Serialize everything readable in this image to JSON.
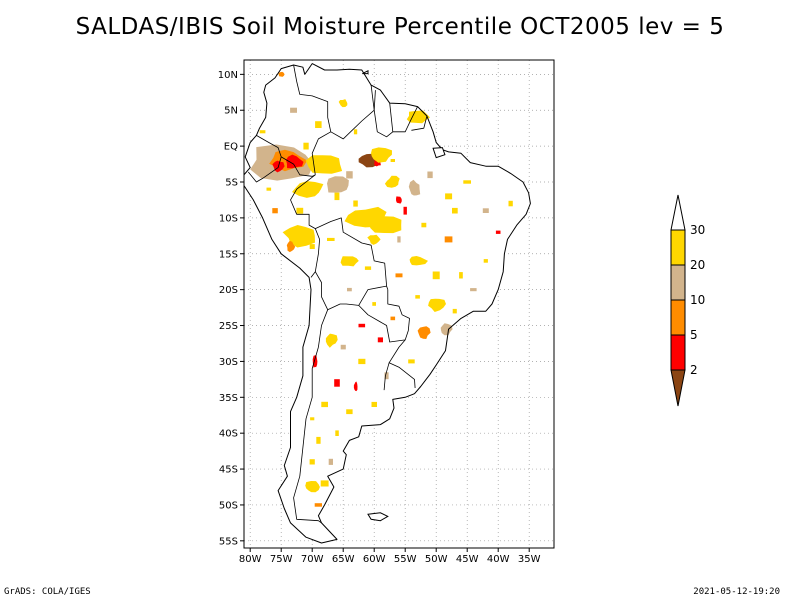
{
  "title": "SALDAS/IBIS Soil Moisture Percentile OCT2005 lev = 5",
  "map": {
    "region": "South America",
    "lon_range": [
      -81,
      -31
    ],
    "lat_range": [
      -56,
      12
    ],
    "lat_ticks": [
      {
        "value": 10,
        "label": "10N"
      },
      {
        "value": 5,
        "label": "5N"
      },
      {
        "value": 0,
        "label": "EQ"
      },
      {
        "value": -5,
        "label": "5S"
      },
      {
        "value": -10,
        "label": "10S"
      },
      {
        "value": -15,
        "label": "15S"
      },
      {
        "value": -20,
        "label": "20S"
      },
      {
        "value": -25,
        "label": "25S"
      },
      {
        "value": -30,
        "label": "30S"
      },
      {
        "value": -35,
        "label": "35S"
      },
      {
        "value": -40,
        "label": "40S"
      },
      {
        "value": -45,
        "label": "45S"
      },
      {
        "value": -50,
        "label": "50S"
      },
      {
        "value": -55,
        "label": "55S"
      }
    ],
    "lon_ticks": [
      {
        "value": -80,
        "label": "80W"
      },
      {
        "value": -75,
        "label": "75W"
      },
      {
        "value": -70,
        "label": "70W"
      },
      {
        "value": -65,
        "label": "65W"
      },
      {
        "value": -60,
        "label": "60W"
      },
      {
        "value": -55,
        "label": "55W"
      },
      {
        "value": -50,
        "label": "50W"
      },
      {
        "value": -45,
        "label": "45W"
      },
      {
        "value": -40,
        "label": "40W"
      },
      {
        "value": -35,
        "label": "35W"
      }
    ]
  },
  "colorbar": {
    "levels": [
      "2",
      "5",
      "10",
      "20",
      "30"
    ],
    "colors": [
      "#8b4513",
      "#ff0000",
      "#ff8c00",
      "#d2b48c",
      "#ffd700",
      "#ffffff"
    ]
  },
  "coast": [
    [
      -77.5,
      8.5
    ],
    [
      -76,
      9.5
    ],
    [
      -75,
      10.8
    ],
    [
      -73,
      11.3
    ],
    [
      -71.5,
      11
    ],
    [
      -71.2,
      10
    ],
    [
      -70,
      11.5
    ],
    [
      -68,
      10.6
    ],
    [
      -66,
      10.6
    ],
    [
      -64,
      10.7
    ],
    [
      -62,
      10.6
    ],
    [
      -60.5,
      8.5
    ],
    [
      -59,
      7.8
    ],
    [
      -57.5,
      6
    ],
    [
      -55,
      5.9
    ],
    [
      -53,
      5.5
    ],
    [
      -51.5,
      4.2
    ],
    [
      -50.5,
      2
    ],
    [
      -50,
      0.5
    ],
    [
      -49,
      -0.5
    ],
    [
      -48,
      -0.8
    ],
    [
      -46,
      -1
    ],
    [
      -44.5,
      -2.3
    ],
    [
      -42,
      -2.8
    ],
    [
      -40,
      -2.8
    ],
    [
      -38,
      -3.8
    ],
    [
      -36,
      -5
    ],
    [
      -35.1,
      -6.5
    ],
    [
      -34.8,
      -8
    ],
    [
      -35.5,
      -9.5
    ],
    [
      -37,
      -11
    ],
    [
      -38.5,
      -13
    ],
    [
      -39,
      -15
    ],
    [
      -39.2,
      -17.5
    ],
    [
      -40,
      -20
    ],
    [
      -41,
      -22
    ],
    [
      -42,
      -23
    ],
    [
      -44,
      -23
    ],
    [
      -46,
      -24
    ],
    [
      -48,
      -25.5
    ],
    [
      -48.5,
      -28.5
    ],
    [
      -50,
      -30.5
    ],
    [
      -51,
      -31.8
    ],
    [
      -52.5,
      -33.5
    ],
    [
      -53.5,
      -34.5
    ],
    [
      -55,
      -35
    ],
    [
      -57,
      -35.3
    ],
    [
      -56.8,
      -36.5
    ],
    [
      -57.5,
      -38
    ],
    [
      -59,
      -38.8
    ],
    [
      -62,
      -39
    ],
    [
      -62.5,
      -40.5
    ],
    [
      -64,
      -41
    ],
    [
      -65,
      -42.5
    ],
    [
      -64.5,
      -43
    ],
    [
      -65,
      -45
    ],
    [
      -67.5,
      -46
    ],
    [
      -66.5,
      -47.5
    ],
    [
      -68,
      -50
    ],
    [
      -69,
      -51.5
    ],
    [
      -68.5,
      -52.5
    ],
    [
      -66,
      -54.8
    ],
    [
      -68.5,
      -55.3
    ],
    [
      -71,
      -54.5
    ],
    [
      -73.5,
      -52.5
    ],
    [
      -74.5,
      -50.5
    ],
    [
      -75.5,
      -48
    ],
    [
      -74,
      -46
    ],
    [
      -74.5,
      -44.5
    ],
    [
      -73.5,
      -42
    ],
    [
      -73.5,
      -39
    ],
    [
      -73.5,
      -37
    ],
    [
      -72.5,
      -35
    ],
    [
      -71.5,
      -32
    ],
    [
      -71.5,
      -28
    ],
    [
      -70.5,
      -25
    ],
    [
      -70.2,
      -20
    ],
    [
      -70.5,
      -18.3
    ],
    [
      -72,
      -17
    ],
    [
      -75,
      -15
    ],
    [
      -76.5,
      -13
    ],
    [
      -78,
      -10
    ],
    [
      -79.5,
      -7.5
    ],
    [
      -81,
      -5.5
    ],
    [
      -81,
      -4
    ],
    [
      -80,
      -3
    ],
    [
      -80.8,
      -1.5
    ],
    [
      -80,
      0.5
    ],
    [
      -79,
      1.5
    ],
    [
      -78.5,
      2.5
    ],
    [
      -77.5,
      4
    ],
    [
      -77.3,
      6
    ],
    [
      -77.8,
      7.5
    ],
    [
      -77.5,
      8.5
    ]
  ],
  "borders": [
    [
      [
        -73,
        11.3
      ],
      [
        -72.5,
        9
      ],
      [
        -72,
        7.2
      ],
      [
        -70,
        7
      ],
      [
        -67.5,
        6.2
      ],
      [
        -67.5,
        4
      ],
      [
        -67,
        2
      ],
      [
        -65,
        1
      ],
      [
        -62,
        3.5
      ],
      [
        -60,
        5
      ],
      [
        -60.5,
        8.5
      ]
    ],
    [
      [
        -59.8,
        7.8
      ],
      [
        -60,
        5
      ],
      [
        -59.5,
        2
      ],
      [
        -58,
        1.3
      ],
      [
        -57,
        2
      ],
      [
        -57.5,
        6
      ]
    ],
    [
      [
        -57,
        2
      ],
      [
        -55,
        2
      ],
      [
        -54,
        3.8
      ],
      [
        -53,
        5.5
      ]
    ],
    [
      [
        -54,
        2.2
      ],
      [
        -52,
        2.5
      ],
      [
        -51.5,
        4.2
      ]
    ],
    [
      [
        -67,
        2
      ],
      [
        -69,
        1
      ],
      [
        -70,
        -1
      ],
      [
        -69.5,
        -4
      ]
    ],
    [
      [
        -79,
        1.5
      ],
      [
        -77,
        0.5
      ],
      [
        -75.5,
        -0.2
      ],
      [
        -75,
        -1.5
      ],
      [
        -75.5,
        -3
      ],
      [
        -78,
        -4.5
      ],
      [
        -79,
        -5
      ],
      [
        -80.3,
        -3.6
      ]
    ],
    [
      [
        -75,
        -1.5
      ],
      [
        -73,
        -2.5
      ],
      [
        -72,
        -4
      ],
      [
        -70,
        -4.2
      ],
      [
        -69.5,
        -4
      ]
    ],
    [
      [
        -69.5,
        -4
      ],
      [
        -72.5,
        -6
      ],
      [
        -73.5,
        -7.5
      ],
      [
        -72.5,
        -9.5
      ],
      [
        -70.5,
        -9.5
      ],
      [
        -70.5,
        -11
      ],
      [
        -69.5,
        -11.5
      ],
      [
        -68.8,
        -13
      ],
      [
        -69,
        -15
      ],
      [
        -69.5,
        -17.5
      ],
      [
        -70.2,
        -18.3
      ]
    ],
    [
      [
        -69.5,
        -11.5
      ],
      [
        -67,
        -10.5
      ],
      [
        -65.3,
        -10
      ],
      [
        -65,
        -12
      ],
      [
        -62,
        -13.5
      ],
      [
        -60.5,
        -13.8
      ],
      [
        -60,
        -16
      ],
      [
        -58.3,
        -16.3
      ],
      [
        -58,
        -19.5
      ],
      [
        -57.8,
        -20
      ]
    ],
    [
      [
        -69.5,
        -17.5
      ],
      [
        -68.5,
        -19
      ],
      [
        -68.5,
        -21
      ],
      [
        -67.5,
        -22.8
      ],
      [
        -65.5,
        -22
      ],
      [
        -64.5,
        -22
      ],
      [
        -62.5,
        -22.2
      ],
      [
        -61,
        -20
      ],
      [
        -58,
        -19.5
      ]
    ],
    [
      [
        -67.5,
        -22.8
      ],
      [
        -68.5,
        -25
      ],
      [
        -69,
        -28
      ],
      [
        -70,
        -31
      ],
      [
        -70,
        -35
      ],
      [
        -71,
        -38
      ],
      [
        -71.5,
        -42
      ],
      [
        -72,
        -46
      ],
      [
        -73,
        -49
      ],
      [
        -72.5,
        -52
      ],
      [
        -69,
        -52.2
      ],
      [
        -68.5,
        -52.5
      ]
    ],
    [
      [
        -62.5,
        -22.2
      ],
      [
        -61,
        -23.5
      ],
      [
        -58,
        -25
      ],
      [
        -57.5,
        -27.3
      ],
      [
        -55,
        -27
      ],
      [
        -54.5,
        -25.7
      ],
      [
        -54.3,
        -24
      ],
      [
        -55.5,
        -23.5
      ],
      [
        -56,
        -22.3
      ],
      [
        -57.8,
        -22
      ],
      [
        -57.8,
        -20
      ]
    ],
    [
      [
        -55,
        -27
      ],
      [
        -56,
        -28
      ],
      [
        -57.6,
        -30.2
      ],
      [
        -56,
        -30.8
      ],
      [
        -53.5,
        -32.5
      ],
      [
        -53.4,
        -33.7
      ]
    ],
    [
      [
        -57.6,
        -30.2
      ],
      [
        -58.2,
        -32
      ],
      [
        -58.4,
        -34
      ]
    ]
  ],
  "small_islands": [
    {
      "name": "Falklands",
      "points": [
        [
          -61,
          -51.3
        ],
        [
          -59,
          -51.1
        ],
        [
          -57.8,
          -51.6
        ],
        [
          -59,
          -52.2
        ],
        [
          -60.5,
          -52
        ],
        [
          -61,
          -51.3
        ]
      ]
    },
    {
      "name": "Marajo",
      "points": [
        [
          -50.5,
          -0.3
        ],
        [
          -49,
          -0.2
        ],
        [
          -48.6,
          -1.2
        ],
        [
          -50,
          -1.6
        ],
        [
          -50.5,
          -0.3
        ]
      ]
    },
    {
      "name": "Trinidad",
      "points": [
        [
          -61.9,
          10.1
        ],
        [
          -61,
          10.5
        ],
        [
          -61,
          10.1
        ],
        [
          -61.9,
          10.1
        ]
      ]
    }
  ],
  "patches": [
    {
      "lon": -75,
      "lat": -2.5,
      "rx": 5.5,
      "ry": 2.8,
      "level": 3
    },
    {
      "lon": -74,
      "lat": -2.0,
      "rx": 3.0,
      "ry": 1.6,
      "level": 2
    },
    {
      "lon": -73,
      "lat": -2.2,
      "rx": 1.4,
      "ry": 1.0,
      "level": 1
    },
    {
      "lon": -75.5,
      "lat": -2.8,
      "rx": 0.9,
      "ry": 0.9,
      "level": 1
    },
    {
      "lon": -68,
      "lat": -2.5,
      "rx": 3.0,
      "ry": 1.6,
      "level": 4
    },
    {
      "lon": -70.5,
      "lat": -6.0,
      "rx": 2.5,
      "ry": 1.2,
      "level": 4
    },
    {
      "lon": -66,
      "lat": -5.5,
      "rx": 2.0,
      "ry": 1.2,
      "level": 3
    },
    {
      "lon": -61,
      "lat": -2.0,
      "rx": 1.8,
      "ry": 1.0,
      "level": 0
    },
    {
      "lon": -59.5,
      "lat": -2.3,
      "rx": 0.6,
      "ry": 0.6,
      "level": 1
    },
    {
      "lon": -59,
      "lat": -1.2,
      "rx": 2.0,
      "ry": 1.0,
      "level": 4
    },
    {
      "lon": -53.5,
      "lat": -6.0,
      "rx": 1.0,
      "ry": 1.2,
      "level": 3
    },
    {
      "lon": -56,
      "lat": -7.5,
      "rx": 0.6,
      "ry": 0.6,
      "level": 1
    },
    {
      "lon": -53,
      "lat": 4.0,
      "rx": 2.0,
      "ry": 1.0,
      "level": 4
    },
    {
      "lon": -62,
      "lat": -10.0,
      "rx": 1.8,
      "ry": 1.3,
      "level": 0
    },
    {
      "lon": -61,
      "lat": -10.0,
      "rx": 3.5,
      "ry": 1.5,
      "level": 4
    },
    {
      "lon": -58,
      "lat": -11.0,
      "rx": 2.5,
      "ry": 1.2,
      "level": 4
    },
    {
      "lon": -72,
      "lat": -12.5,
      "rx": 2.5,
      "ry": 1.5,
      "level": 4
    },
    {
      "lon": -73.5,
      "lat": -14.0,
      "rx": 0.7,
      "ry": 0.7,
      "level": 2
    },
    {
      "lon": -60,
      "lat": -13.0,
      "rx": 1.0,
      "ry": 0.8,
      "level": 4
    },
    {
      "lon": -64,
      "lat": -16.0,
      "rx": 1.5,
      "ry": 0.8,
      "level": 4
    },
    {
      "lon": -53,
      "lat": -16.0,
      "rx": 1.5,
      "ry": 0.8,
      "level": 4
    },
    {
      "lon": -50,
      "lat": -22.0,
      "rx": 1.5,
      "ry": 1.0,
      "level": 4
    },
    {
      "lon": -52,
      "lat": -26.0,
      "rx": 1.0,
      "ry": 1.0,
      "level": 2
    },
    {
      "lon": -48.5,
      "lat": -25.5,
      "rx": 1.0,
      "ry": 0.8,
      "level": 3
    },
    {
      "lon": -69.5,
      "lat": -30.0,
      "rx": 0.4,
      "ry": 1.0,
      "level": 1
    },
    {
      "lon": -63,
      "lat": -33.5,
      "rx": 0.3,
      "ry": 0.7,
      "level": 1
    },
    {
      "lon": -70,
      "lat": -47.5,
      "rx": 1.3,
      "ry": 0.8,
      "level": 4
    },
    {
      "lon": -67,
      "lat": -27.0,
      "rx": 1.0,
      "ry": 1.0,
      "level": 4
    },
    {
      "lon": -75,
      "lat": 10.0,
      "rx": 0.5,
      "ry": 0.4,
      "level": 2
    },
    {
      "lon": -65,
      "lat": 6.0,
      "rx": 0.8,
      "ry": 0.6,
      "level": 4
    },
    {
      "lon": -57,
      "lat": -5.0,
      "rx": 1.2,
      "ry": 0.8,
      "level": 4
    }
  ],
  "footer": {
    "left": "GrADS: COLA/IGES",
    "right": "2021-05-12-19:20"
  }
}
